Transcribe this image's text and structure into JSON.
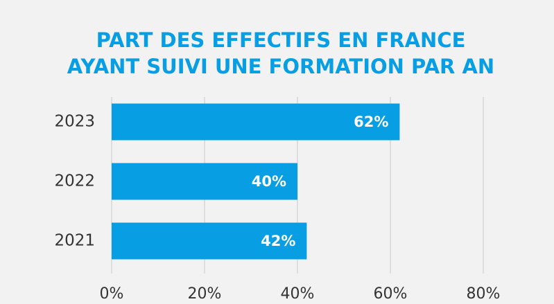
{
  "chart_data": {
    "type": "barh",
    "title": [
      "PART DES EFFECTIFS EN FRANCE",
      "AYANT SUIVI UNE FORMATION PAR AN"
    ],
    "categories": [
      "2023",
      "2022",
      "2021"
    ],
    "values": [
      62,
      40,
      42
    ],
    "value_labels": [
      "62%",
      "40%",
      "42%"
    ],
    "color": "#079ee3",
    "xlim": [
      0,
      80
    ],
    "xticks": [
      {
        "value": 0,
        "label": "0%"
      },
      {
        "value": 20,
        "label": "20%"
      },
      {
        "value": 40,
        "label": "40%"
      },
      {
        "value": 60,
        "label": "60%"
      },
      {
        "value": 80,
        "label": "80%"
      }
    ],
    "grid": true
  }
}
